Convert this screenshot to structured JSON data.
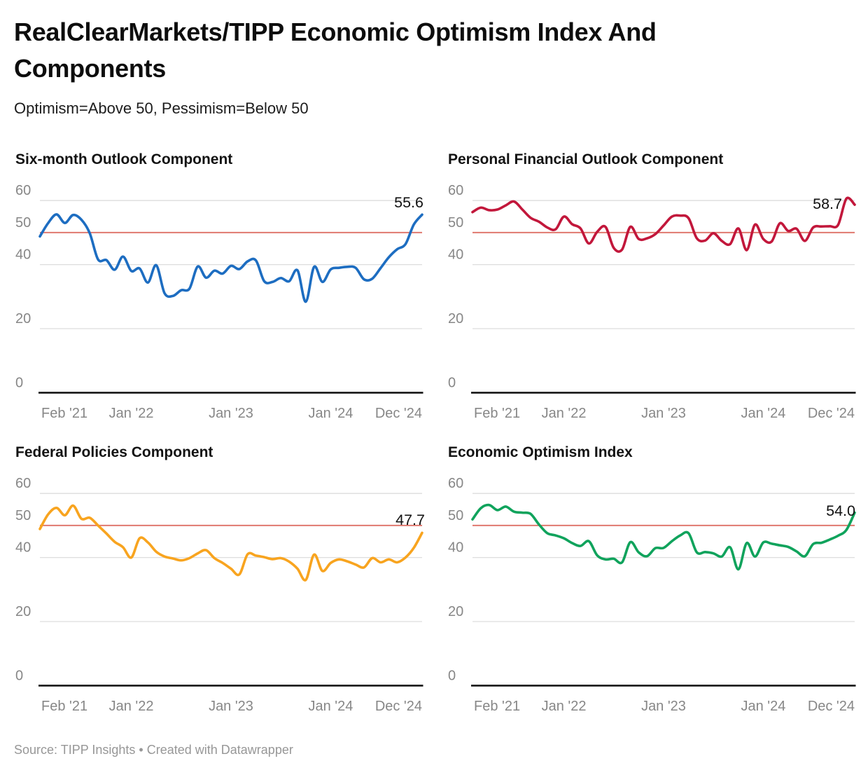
{
  "header": {
    "title": "RealClearMarkets/TIPP Economic Optimism Index And Components",
    "subtitle": "Optimism=Above 50, Pessimism=Below 50"
  },
  "footer": {
    "text": "Source: TIPP Insights • Created with Datawrapper"
  },
  "colors": {
    "blue": "#1d6dc1",
    "crimson": "#c2173b",
    "orange": "#f8a41f",
    "green": "#10a35c",
    "threshold_red": "#e0796f",
    "gridline": "#dddddd",
    "axis": "#161616",
    "tick_text": "#878787",
    "value_label_text": "#111111"
  },
  "chart_data": {
    "type": "line",
    "note": "Four small-multiple monthly line charts, Feb 2021 - Dec 2024, shared axes",
    "ylim": [
      0,
      60
    ],
    "y_ticks": [
      60,
      50,
      40,
      20,
      0
    ],
    "threshold": 50,
    "grid": "horizontal-only",
    "months": [
      "Feb '21",
      "Mar '21",
      "Apr '21",
      "May '21",
      "Jun '21",
      "Jul '21",
      "Aug '21",
      "Sep '21",
      "Oct '21",
      "Nov '21",
      "Dec '21",
      "Jan '22",
      "Feb '22",
      "Mar '22",
      "Apr '22",
      "May '22",
      "Jun '22",
      "Jul '22",
      "Aug '22",
      "Sep '22",
      "Oct '22",
      "Nov '22",
      "Dec '22",
      "Jan '23",
      "Feb '23",
      "Mar '23",
      "Apr '23",
      "May '23",
      "Jun '23",
      "Jul '23",
      "Aug '23",
      "Sep '23",
      "Oct '23",
      "Nov '23",
      "Dec '23",
      "Jan '24",
      "Feb '24",
      "Mar '24",
      "Apr '24",
      "May '24",
      "Jun '24",
      "Jul '24",
      "Aug '24",
      "Sep '24",
      "Oct '24",
      "Nov '24",
      "Dec '24"
    ],
    "x_ticks": [
      {
        "label": "Feb '21",
        "index": 0
      },
      {
        "label": "Jan '22",
        "index": 11
      },
      {
        "label": "Jan '23",
        "index": 23
      },
      {
        "label": "Jan '24",
        "index": 35
      },
      {
        "label": "Dec '24",
        "index": 46
      }
    ],
    "charts": [
      {
        "key": "six_month_outlook",
        "title": "Six-month Outlook Component",
        "color_key": "blue",
        "end_label": "55.6",
        "label_anchor": {
          "x": 605,
          "y": 86
        },
        "values": [
          48.8,
          53.0,
          55.7,
          53.0,
          55.5,
          54.0,
          49.8,
          41.6,
          41.4,
          38.4,
          42.5,
          38.0,
          38.8,
          34.4,
          39.8,
          31.1,
          30.2,
          32.0,
          32.5,
          39.4,
          35.9,
          38.1,
          37.2,
          39.6,
          38.6,
          41.0,
          41.3,
          34.8,
          34.6,
          35.8,
          34.8,
          38.2,
          28.4,
          39.3,
          34.6,
          38.5,
          39.0,
          39.3,
          39.0,
          35.4,
          35.6,
          38.9,
          42.3,
          44.8,
          46.4,
          52.5,
          55.6
        ]
      },
      {
        "key": "personal_financial_outlook",
        "title": "Personal Financial Outlook Component",
        "color_key": "crimson",
        "end_label": "58.7",
        "label_anchor": {
          "x": 585,
          "y": 88
        },
        "values": [
          56.4,
          57.8,
          57.0,
          57.2,
          58.5,
          59.7,
          57.2,
          54.6,
          53.4,
          51.6,
          51.0,
          55.0,
          52.6,
          51.3,
          46.6,
          50.2,
          51.8,
          45.2,
          44.7,
          51.8,
          48.0,
          48.2,
          49.5,
          52.2,
          55.0,
          55.3,
          54.5,
          48.2,
          47.5,
          49.8,
          47.4,
          46.4,
          51.3,
          44.5,
          52.5,
          48.0,
          47.2,
          52.9,
          50.5,
          51.2,
          47.4,
          51.6,
          51.9,
          52.0,
          52.4,
          60.6,
          58.7
        ]
      },
      {
        "key": "federal_policies",
        "title": "Federal Policies Component",
        "color_key": "orange",
        "end_label": "47.7",
        "label_anchor": {
          "x": 607,
          "y": 121
        },
        "values": [
          48.9,
          53.5,
          55.5,
          53.2,
          56.2,
          52.1,
          52.4,
          50.0,
          47.5,
          44.9,
          43.2,
          40.0,
          46.0,
          44.7,
          41.8,
          40.3,
          39.7,
          39.1,
          39.8,
          41.3,
          42.3,
          39.8,
          38.3,
          36.5,
          34.7,
          41.0,
          40.6,
          40.1,
          39.5,
          39.8,
          38.7,
          36.5,
          33.0,
          40.9,
          35.8,
          38.3,
          39.4,
          38.8,
          37.8,
          36.9,
          39.8,
          38.5,
          39.4,
          38.5,
          40.0,
          43.0,
          47.7
        ]
      },
      {
        "key": "economic_optimism_index",
        "title": "Economic Optimism Index",
        "color_key": "green",
        "end_label": "54.0",
        "label_anchor": {
          "x": 604,
          "y": 108
        },
        "values": [
          51.9,
          55.4,
          56.4,
          54.8,
          55.9,
          54.3,
          54.0,
          53.6,
          50.3,
          47.6,
          46.9,
          46.0,
          44.5,
          43.6,
          45.1,
          40.7,
          39.4,
          39.6,
          38.5,
          44.8,
          41.6,
          40.4,
          42.9,
          43.0,
          45.1,
          46.9,
          47.6,
          41.6,
          41.7,
          41.3,
          40.3,
          43.2,
          36.3,
          44.5,
          40.3,
          44.7,
          44.3,
          43.8,
          43.3,
          41.9,
          40.4,
          44.2,
          44.6,
          45.6,
          46.8,
          48.6,
          54.0
        ]
      }
    ]
  }
}
